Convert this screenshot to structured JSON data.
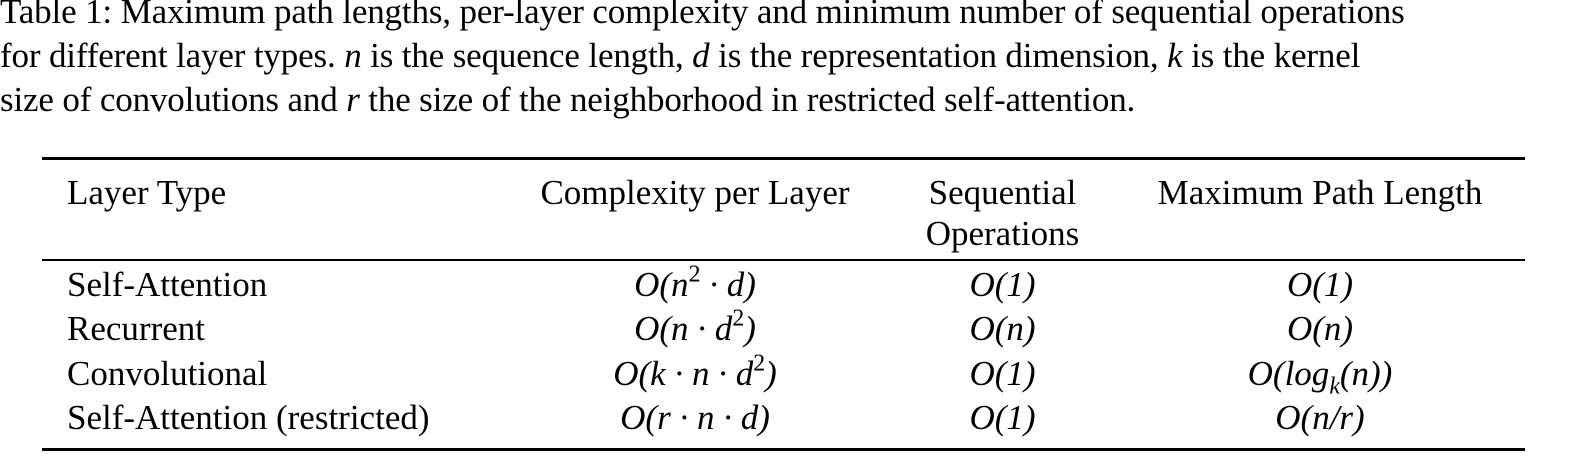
{
  "caption": {
    "line1": "Table 1:  Maximum path lengths, per-layer complexity and minimum number of sequential operations",
    "line2_a": "for different layer types. ",
    "var_n": "n",
    "line2_b": " is the sequence length, ",
    "var_d": "d",
    "line2_c": " is the representation dimension, ",
    "var_k": "k",
    "line2_d": " is the kernel",
    "line3_a": "size of convolutions and ",
    "var_r": "r",
    "line3_b": " the size of the neighborhood in restricted self-attention."
  },
  "table": {
    "headers": [
      "Layer Type",
      "Complexity per Layer",
      "Sequential",
      "Operations",
      "Maximum Path Length"
    ],
    "rows": [
      {
        "layer": "Self-Attention",
        "complexity": [
          "O(n",
          "2",
          " · d)"
        ],
        "sequential": "O(1)",
        "path": [
          "O(1)"
        ]
      },
      {
        "layer": "Recurrent",
        "complexity": [
          "O(n · d",
          "2",
          ")"
        ],
        "sequential": "O(n)",
        "path": [
          "O(n)"
        ]
      },
      {
        "layer": "Convolutional",
        "complexity": [
          "O(k · n · d",
          "2",
          ")"
        ],
        "sequential": "O(1)",
        "path": [
          "O(log",
          "k",
          "(n))"
        ]
      },
      {
        "layer": "Self-Attention (restricted)",
        "complexity": [
          "O(r · n · d)"
        ],
        "sequential": "O(1)",
        "path": [
          "O(n/r)"
        ]
      }
    ]
  }
}
